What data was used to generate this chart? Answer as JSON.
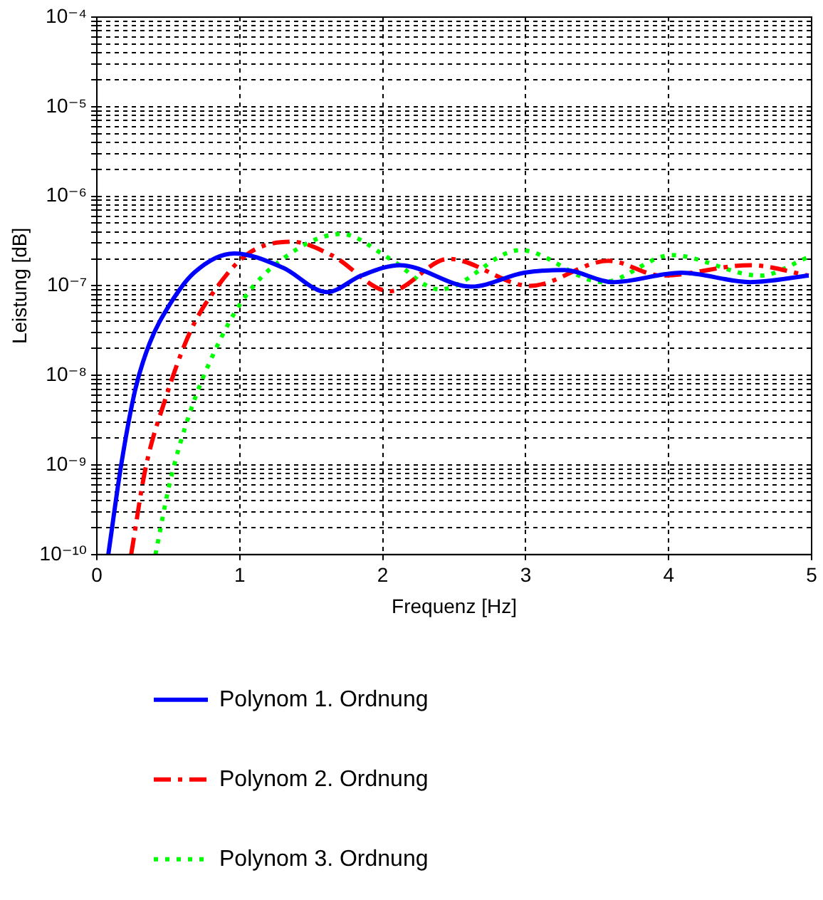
{
  "chart_data": {
    "type": "line",
    "xlabel": "Frequenz [Hz]",
    "ylabel": "Leistung [dB]",
    "xlim": [
      0,
      5
    ],
    "xticks": [
      0,
      1,
      2,
      3,
      4,
      5
    ],
    "ylim": [
      1e-10,
      0.0001
    ],
    "log": "y",
    "yticks": [
      {
        "value": 1e-10,
        "label": "10⁻¹⁰"
      },
      {
        "value": 2e-10,
        "label": null
      },
      {
        "value": 3e-10,
        "label": null
      },
      {
        "value": 4e-10,
        "label": null
      },
      {
        "value": 5e-10,
        "label": null
      },
      {
        "value": 6e-10,
        "label": null
      },
      {
        "value": 7e-10,
        "label": null
      },
      {
        "value": 8e-10,
        "label": null
      },
      {
        "value": 9e-10,
        "label": null
      },
      {
        "value": 1e-09,
        "label": "10⁻⁹"
      },
      {
        "value": 2e-09,
        "label": null
      },
      {
        "value": 3e-09,
        "label": null
      },
      {
        "value": 4e-09,
        "label": null
      },
      {
        "value": 5e-09,
        "label": null
      },
      {
        "value": 6e-09,
        "label": null
      },
      {
        "value": 7e-09,
        "label": null
      },
      {
        "value": 8e-09,
        "label": null
      },
      {
        "value": 9e-09,
        "label": null
      },
      {
        "value": 1e-08,
        "label": "10⁻⁸"
      },
      {
        "value": 2e-08,
        "label": null
      },
      {
        "value": 3e-08,
        "label": null
      },
      {
        "value": 4e-08,
        "label": null
      },
      {
        "value": 5e-08,
        "label": null
      },
      {
        "value": 6e-08,
        "label": null
      },
      {
        "value": 7e-08,
        "label": null
      },
      {
        "value": 8e-08,
        "label": null
      },
      {
        "value": 9e-08,
        "label": null
      },
      {
        "value": 1e-07,
        "label": "10⁻⁷"
      },
      {
        "value": 2e-07,
        "label": null
      },
      {
        "value": 3e-07,
        "label": null
      },
      {
        "value": 4e-07,
        "label": null
      },
      {
        "value": 5e-07,
        "label": null
      },
      {
        "value": 6e-07,
        "label": null
      },
      {
        "value": 7e-07,
        "label": null
      },
      {
        "value": 8e-07,
        "label": null
      },
      {
        "value": 9e-07,
        "label": null
      },
      {
        "value": 1e-06,
        "label": "10⁻⁶"
      },
      {
        "value": 2e-06,
        "label": null
      },
      {
        "value": 3e-06,
        "label": null
      },
      {
        "value": 4e-06,
        "label": null
      },
      {
        "value": 5e-06,
        "label": null
      },
      {
        "value": 6e-06,
        "label": null
      },
      {
        "value": 7e-06,
        "label": null
      },
      {
        "value": 8e-06,
        "label": null
      },
      {
        "value": 9e-06,
        "label": null
      },
      {
        "value": 1e-05,
        "label": "10⁻⁵"
      },
      {
        "value": 2e-05,
        "label": null
      },
      {
        "value": 3e-05,
        "label": null
      },
      {
        "value": 4e-05,
        "label": null
      },
      {
        "value": 5e-05,
        "label": null
      },
      {
        "value": 6e-05,
        "label": null
      },
      {
        "value": 7e-05,
        "label": null
      },
      {
        "value": 8e-05,
        "label": null
      },
      {
        "value": 9e-05,
        "label": null
      },
      {
        "value": 0.0001,
        "label": "10⁻⁴"
      }
    ],
    "grid": true,
    "legend": "bottom",
    "marker": "none",
    "series": [
      {
        "name": "Polynom 1. Ordnung",
        "color": "#0000ff",
        "line_style": "solid",
        "x": [
          0.08,
          0.17,
          0.27,
          0.37,
          0.51,
          0.68,
          0.96,
          1.3,
          1.61,
          1.85,
          2.12,
          2.62,
          2.99,
          3.27,
          3.61,
          4.09,
          4.57,
          4.98
        ],
        "values": [
          1e-10,
          1e-09,
          7.1e-09,
          2.3e-08,
          6.2e-08,
          1.4e-07,
          2.3e-07,
          1.6e-07,
          8.5e-08,
          1.3e-07,
          1.7e-07,
          9.8e-08,
          1.4e-07,
          1.5e-07,
          1.1e-07,
          1.4e-07,
          1.1e-07,
          1.3e-07
        ]
      },
      {
        "name": "Polynom 2. Ordnung",
        "color": "#ff0000",
        "line_style": "dashed",
        "x": [
          0.24,
          0.34,
          0.48,
          0.65,
          0.82,
          1.06,
          1.37,
          1.64,
          2.05,
          2.46,
          3.03,
          3.58,
          3.95,
          4.57,
          4.98
        ],
        "values": [
          1e-10,
          9.1e-10,
          5.5e-09,
          3e-08,
          8.7e-08,
          2.3e-07,
          3.1e-07,
          2.2e-07,
          8.7e-08,
          2e-07,
          1e-07,
          1.9e-07,
          1.3e-07,
          1.7e-07,
          1.3e-07
        ]
      },
      {
        "name": "Polynom 3. Ordnung",
        "color": "#00ff00",
        "line_style": "dotted",
        "x": [
          0.41,
          0.51,
          0.65,
          0.82,
          1.02,
          1.3,
          1.71,
          2.05,
          2.4,
          2.96,
          3.54,
          4.02,
          4.64,
          4.98
        ],
        "values": [
          1e-10,
          6.3e-10,
          3.8e-09,
          1.8e-08,
          6.9e-08,
          2e-07,
          3.8e-07,
          2e-07,
          9.1e-08,
          2.5e-07,
          1.1e-07,
          2.2e-07,
          1.3e-07,
          2.1e-07
        ]
      }
    ]
  }
}
